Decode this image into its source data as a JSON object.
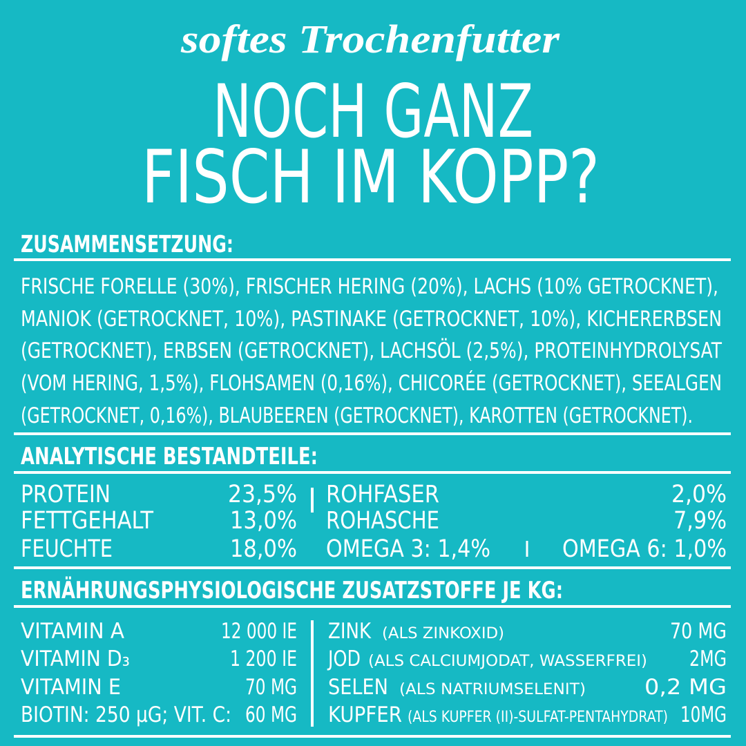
{
  "header": {
    "tagline": "softes Trochenfutter",
    "title_lines": [
      "NOCH GANZ",
      "FISCH IM KOPP?"
    ]
  },
  "composition": {
    "heading": "ZUSAMMENSETZUNG:",
    "lines": [
      "FRISCHE FORELLE (30%), FRISCHER HERING (20%), LACHS (10% GETROCKNET),",
      "MANIOK (GETROCKNET, 10%), PASTINAKE (GETROCKNET, 10%), KICHERERBSEN",
      "(GETROCKNET), ERBSEN (GETROCKNET), LACHSÖL (2,5%), PROTEINHYDROLYSAT",
      "(VOM HERING, 1,5%), FLOHSAMEN (0,16%), CHICORÉE (GETROCKNET), SEEALGEN",
      "(GETROCKNET, 0,16%), BLAUBEEREN (GETROCKNET), KAROTTEN (GETROCKNET)."
    ]
  },
  "analysis": {
    "heading": "ANALYTISCHE BESTANDTEILE:",
    "left": [
      {
        "label": "PROTEIN",
        "value": "23,5%"
      },
      {
        "label": "FETTGEHALT",
        "value": "13,0%"
      },
      {
        "label": "FEUCHTE",
        "value": "18,0%"
      }
    ],
    "right": [
      {
        "label": "ROHFASER",
        "value": "2,0%"
      },
      {
        "label": "ROHASCHE",
        "value": "7,9%"
      }
    ],
    "omega": [
      "OMEGA 3: 1,4%",
      "OMEGA 6: 1,0%"
    ]
  },
  "additives": {
    "heading": "ERNÄHRUNGSPHYSIOLOGISCHE ZUSATZSTOFFE JE KG:",
    "left": [
      {
        "label": "VITAMIN A",
        "value": "12 000 IE"
      },
      {
        "label": "VITAMIN D₃",
        "value": "1 200 IE"
      },
      {
        "label": "VITAMIN E",
        "value": "70 MG"
      },
      {
        "label": "BIOTIN: 250 µG; VIT. C:",
        "value": "60 MG"
      }
    ],
    "right": [
      {
        "label": "ZINK",
        "note": "(ALS ZINKOXID)",
        "value": "70 MG"
      },
      {
        "label": "JOD",
        "note": "(ALS CALCIUMJODAT, WASSERFREI)",
        "value": "2MG"
      },
      {
        "label": "SELEN",
        "note": "(ALS NATRIUMSELENIT)",
        "value": "0,2 MG"
      },
      {
        "label": "KUPFER",
        "note": "(ALS KUPFER (II)-SULFAT-PENTAHYDRAT)",
        "value": "10MG"
      }
    ]
  }
}
